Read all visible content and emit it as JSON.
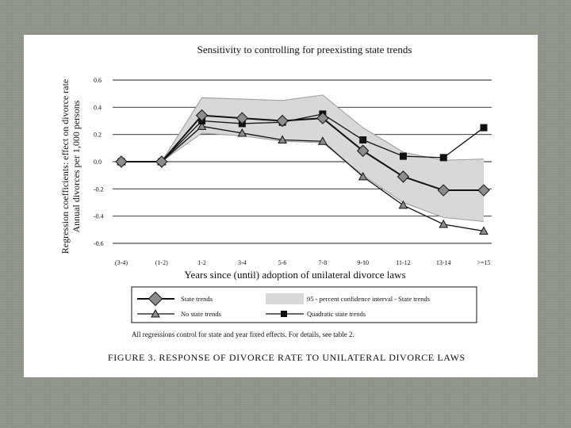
{
  "chart_data": {
    "type": "line",
    "title": "Sensitivity to controlling for preexisting state trends",
    "ylabel_line1": "Regression coefficients: effect on divorce rate",
    "ylabel_line2": "Annual divorces per 1,000 persons",
    "xlabel": "Years since (until) adoption of unilateral divorce laws",
    "ylim": [
      -0.65,
      0.65
    ],
    "yticks": [
      {
        "value": 0.6,
        "label": "0.6"
      },
      {
        "value": 0.4,
        "label": "0.4"
      },
      {
        "value": 0.2,
        "label": "0.2"
      },
      {
        "value": 0.0,
        "label": "0.0"
      },
      {
        "value": -0.2,
        "label": "-0.2"
      },
      {
        "value": -0.4,
        "label": "-0.4"
      },
      {
        "value": -0.6,
        "label": "-0.6"
      }
    ],
    "categories": [
      "(3-4)",
      "(1-2)",
      "1-2",
      "3-4",
      "5-6",
      "7-8",
      "9-10",
      "11-12",
      "13-14",
      ">=15"
    ],
    "series": [
      {
        "name": "State trends",
        "marker": "diamond",
        "values": [
          0.0,
          0.0,
          0.34,
          0.32,
          0.3,
          0.32,
          0.08,
          -0.11,
          -0.21,
          -0.21
        ]
      },
      {
        "name": "No state trends",
        "marker": "triangle",
        "values": [
          0.0,
          0.0,
          0.26,
          0.21,
          0.16,
          0.15,
          -0.11,
          -0.32,
          -0.46,
          -0.51
        ]
      },
      {
        "name": "Quadratic state trends",
        "marker": "square",
        "values": [
          0.0,
          0.0,
          0.3,
          0.28,
          0.29,
          0.35,
          0.16,
          0.04,
          0.03,
          0.25
        ]
      }
    ],
    "confidence_band": {
      "name": "95 - percent confidence interval - State trends",
      "upper": [
        0.0,
        0.0,
        0.47,
        0.46,
        0.45,
        0.49,
        0.25,
        0.07,
        0.01,
        0.02
      ],
      "lower": [
        0.0,
        0.0,
        0.21,
        0.19,
        0.15,
        0.14,
        -0.1,
        -0.3,
        -0.41,
        -0.44
      ]
    },
    "legend": {
      "state_trends": "State trends",
      "confidence_interval": "95 - percent confidence interval - State trends",
      "no_state_trends": "No state trends",
      "quadratic": "Quadratic state trends"
    }
  },
  "note": "All regressions control for state and year fixed effects.  For details, see table 2.",
  "figure_caption": "FIGURE 3.  RESPONSE OF DIVORCE RATE TO UNILATERAL DIVORCE LAWS",
  "colors": {
    "band": "#d8d8d8",
    "band_edge": "#9a9a9a",
    "line": "#111111",
    "marker_fill": "#8c8c8c",
    "square_fill": "#111111",
    "background": "#8c9185"
  }
}
